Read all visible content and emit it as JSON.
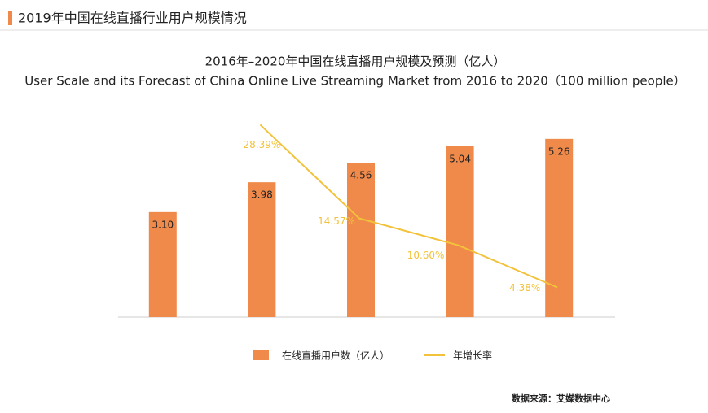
{
  "header": {
    "title": "2019年中国在线直播行业用户规模情况"
  },
  "chart_data": {
    "type": "bar-line",
    "title": "2016年–2020年中国在线直播用户规模及预测（亿人）",
    "subtitle": "User Scale and its Forecast of China Online Live Streaming Market from 2016 to 2020（100 million people）",
    "categories": [
      null,
      null,
      null,
      null,
      null
    ],
    "series": [
      {
        "name": "在线直播用户数（亿人）",
        "type": "bar",
        "color": "#f08a4b",
        "values": [
          3.1,
          3.98,
          4.56,
          5.04,
          5.26
        ],
        "value_labels": [
          "3.10",
          "3.98",
          "4.56",
          "5.04",
          "5.26"
        ]
      },
      {
        "name": "年增长率",
        "type": "line",
        "axis": "y2",
        "color": "#f2c23a",
        "values": [
          null,
          28.39,
          14.57,
          10.6,
          4.38
        ],
        "value_labels": [
          null,
          "28.39%",
          "14.57%",
          "10.60%",
          "4.38%"
        ]
      }
    ],
    "ylim": [
      0,
      6
    ],
    "y2lim": [
      0,
      30
    ],
    "legend": "bottom",
    "source": "数据来源：艾媒数据中心"
  }
}
